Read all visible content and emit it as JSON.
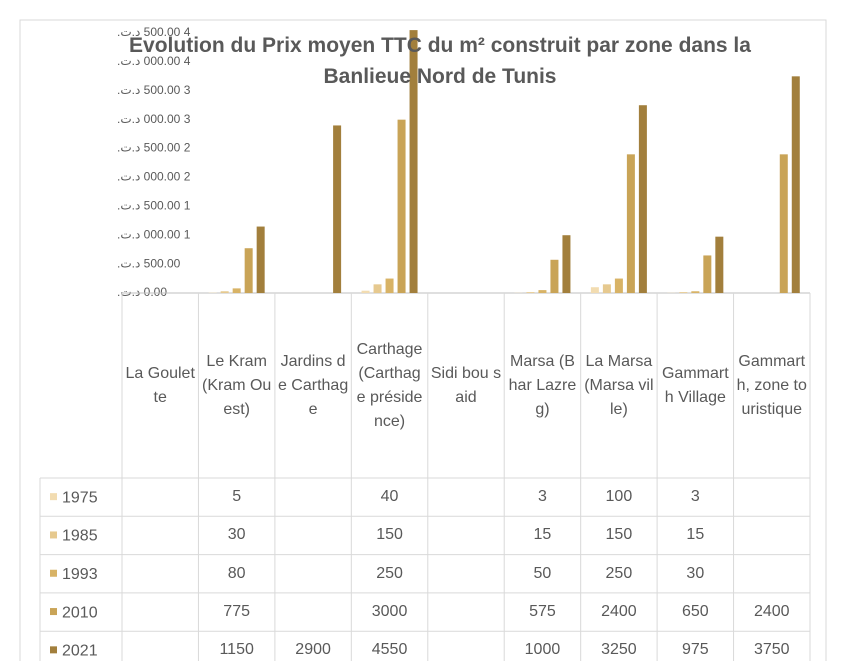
{
  "chart_data": {
    "type": "bar",
    "title": "Evolution du Prix moyen TTC du m² construit par zone dans la Banlieue Nord de Tunis",
    "categories": [
      "La Goulette",
      "Le Kram (Kram Ouest)",
      "Jardins de Carthage",
      "Carthage (Carthage présidence)",
      "Sidi bou said",
      "Marsa (Bhar Lazreg)",
      "La Marsa (Marsa ville)",
      "Gammarth Village",
      "Gammarth, zone touristique"
    ],
    "series": [
      {
        "name": "1975",
        "color": "#f2dcb1",
        "values": [
          null,
          5,
          null,
          40,
          null,
          3,
          100,
          3,
          null
        ]
      },
      {
        "name": "1985",
        "color": "#e6c98f",
        "values": [
          null,
          30,
          null,
          150,
          null,
          15,
          150,
          15,
          null
        ]
      },
      {
        "name": "1993",
        "color": "#d8b366",
        "values": [
          null,
          80,
          null,
          250,
          null,
          50,
          250,
          30,
          null
        ]
      },
      {
        "name": "2010",
        "color": "#c9a457",
        "values": [
          null,
          775,
          null,
          3000,
          null,
          575,
          2400,
          650,
          2400
        ]
      },
      {
        "name": "2021",
        "color": "#a27f3c",
        "values": [
          null,
          1150,
          2900,
          4550,
          null,
          1000,
          3250,
          975,
          3750
        ]
      }
    ],
    "ylim": [
      0,
      4500
    ],
    "yticks": [
      {
        "value": 0,
        "label": "0.00 د.ت."
      },
      {
        "value": 500,
        "label": "500.00 د.ت."
      },
      {
        "value": 1000,
        "label": "1 000.00 د.ت."
      },
      {
        "value": 1500,
        "label": "1 500.00 د.ت."
      },
      {
        "value": 2000,
        "label": "2 000.00 د.ت."
      },
      {
        "value": 2500,
        "label": "2 500.00 د.ت."
      },
      {
        "value": 3000,
        "label": "3 000.00 د.ت."
      },
      {
        "value": 3500,
        "label": "3 500.00 د.ت."
      },
      {
        "value": 4000,
        "label": "4 000.00 د.ت."
      },
      {
        "value": 4500,
        "label": "4 500.00 د.ت."
      }
    ],
    "grid": false
  }
}
